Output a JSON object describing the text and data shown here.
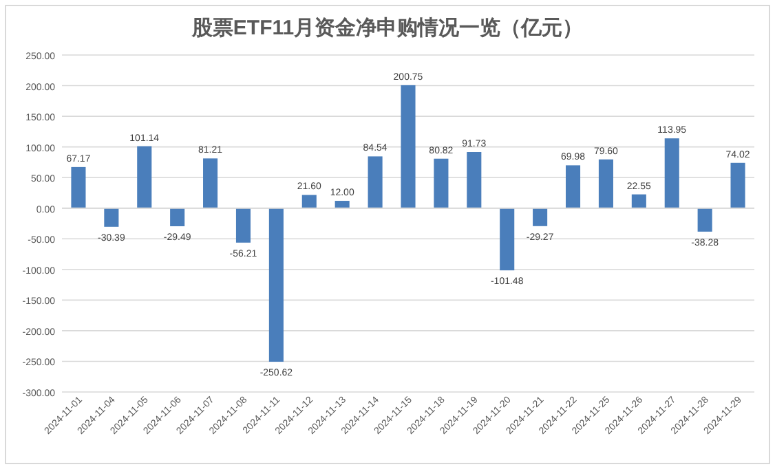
{
  "chart_data": {
    "type": "bar",
    "title": "股票ETF11月资金净申购情况一览（亿元）",
    "categories": [
      "2024-11-01",
      "2024-11-04",
      "2024-11-05",
      "2024-11-06",
      "2024-11-07",
      "2024-11-08",
      "2024-11-11",
      "2024-11-12",
      "2024-11-13",
      "2024-11-14",
      "2024-11-15",
      "2024-11-18",
      "2024-11-19",
      "2024-11-20",
      "2024-11-21",
      "2024-11-22",
      "2024-11-25",
      "2024-11-26",
      "2024-11-27",
      "2024-11-28",
      "2024-11-29"
    ],
    "values": [
      67.17,
      -30.39,
      101.14,
      -29.49,
      81.21,
      -56.21,
      -250.62,
      21.6,
      12.0,
      84.54,
      200.75,
      80.82,
      91.73,
      -101.48,
      -29.27,
      69.98,
      79.6,
      22.55,
      113.95,
      -38.28,
      74.02
    ],
    "value_labels": [
      "67.17",
      "-30.39",
      "101.14",
      "-29.49",
      "81.21",
      "-56.21",
      "-250.62",
      "21.60",
      "12.00",
      "84.54",
      "200.75",
      "80.82",
      "91.73",
      "-101.48",
      "-29.27",
      "69.98",
      "79.60",
      "22.55",
      "113.95",
      "-38.28",
      "74.02"
    ],
    "color": "#4a7ebb",
    "ylim": [
      -300,
      250
    ],
    "yticks": [
      {
        "value": -300,
        "label": "-300.00"
      },
      {
        "value": -250,
        "label": "-250.00"
      },
      {
        "value": -200,
        "label": "-200.00"
      },
      {
        "value": -150,
        "label": "-150.00"
      },
      {
        "value": -100,
        "label": "-100.00"
      },
      {
        "value": -50,
        "label": "-50.00"
      },
      {
        "value": 0,
        "label": "0.00"
      },
      {
        "value": 50,
        "label": "50.00"
      },
      {
        "value": 100,
        "label": "100.00"
      },
      {
        "value": 150,
        "label": "150.00"
      },
      {
        "value": 200,
        "label": "200.00"
      },
      {
        "value": 250,
        "label": "250.00"
      }
    ],
    "grid": "y"
  }
}
